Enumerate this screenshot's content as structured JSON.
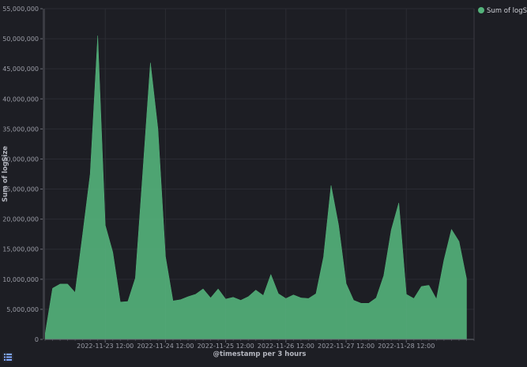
{
  "chart_data": {
    "type": "area",
    "xlabel": "@timestamp per 3 hours",
    "ylabel": "Sum of logSize",
    "ylim": [
      0,
      55000000
    ],
    "yticks": [
      0,
      5000000,
      10000000,
      15000000,
      20000000,
      25000000,
      30000000,
      35000000,
      40000000,
      45000000,
      50000000,
      55000000
    ],
    "ytick_labels": [
      "0",
      "5,000,000",
      "10,000,000",
      "15,000,000",
      "20,000,000",
      "25,000,000",
      "30,000,000",
      "35,000,000",
      "40,000,000",
      "45,000,000",
      "50,000,000",
      "55,000,000"
    ],
    "xticks": [
      "2022-11-23 12:00",
      "2022-11-24 12:00",
      "2022-11-25 12:00",
      "2022-11-26 12:00",
      "2022-11-27 12:00",
      "2022-11-28 12:00"
    ],
    "x_start": "2022-11-22 12:00",
    "x_step_hours": 3,
    "x_end": "2022-11-29 15:00",
    "grid": true,
    "legend_position": "top-right",
    "series": [
      {
        "name": "Sum of logSize",
        "color": "#54b37b",
        "values": [
          800000,
          8500000,
          9200000,
          9200000,
          7800000,
          17500000,
          27500000,
          50500000,
          19000000,
          14500000,
          6200000,
          6300000,
          10200000,
          28000000,
          46000000,
          35000000,
          13800000,
          6400000,
          6600000,
          7100000,
          7500000,
          8400000,
          6900000,
          8400000,
          6700000,
          7000000,
          6500000,
          7100000,
          8200000,
          7300000,
          10800000,
          7600000,
          6800000,
          7400000,
          6900000,
          6800000,
          7600000,
          13700000,
          25600000,
          19000000,
          9300000,
          6500000,
          6000000,
          6000000,
          6900000,
          10600000,
          18200000,
          22700000,
          7500000,
          6800000,
          8800000,
          9000000,
          6700000,
          13200000,
          18300000,
          16300000,
          10100000
        ]
      }
    ]
  },
  "ui": {
    "legend_toggle_icon": "list-icon"
  }
}
